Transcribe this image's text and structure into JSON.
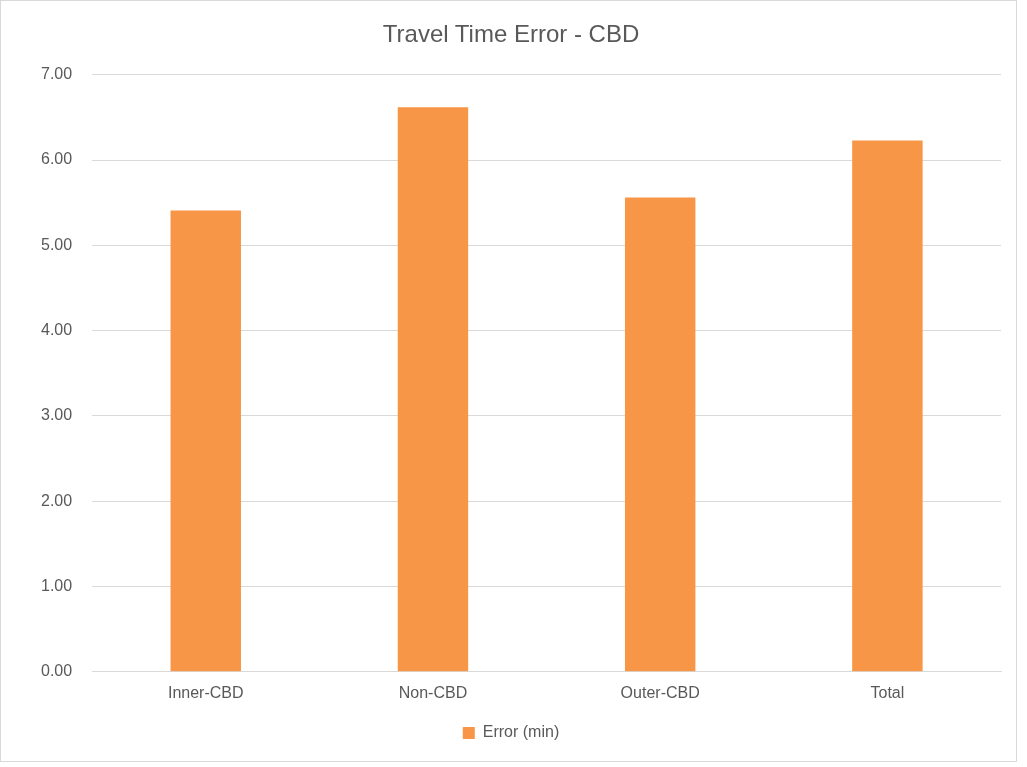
{
  "chart_data": {
    "type": "bar",
    "title": "Travel Time Error - CBD",
    "categories": [
      "Inner-CBD",
      "Non-CBD",
      "Outer-CBD",
      "Total"
    ],
    "series": [
      {
        "name": "Error (min)",
        "color": "#f79646",
        "values": [
          5.41,
          6.62,
          5.56,
          6.23
        ]
      }
    ],
    "ylim": [
      0,
      7
    ],
    "yticks": [
      {
        "value": 0,
        "label": "0.00"
      },
      {
        "value": 1,
        "label": "1.00"
      },
      {
        "value": 2,
        "label": "2.00"
      },
      {
        "value": 3,
        "label": "3.00"
      },
      {
        "value": 4,
        "label": "4.00"
      },
      {
        "value": 5,
        "label": "5.00"
      },
      {
        "value": 6,
        "label": "6.00"
      },
      {
        "value": 7,
        "label": "7.00"
      }
    ],
    "grid": "y",
    "legend": "bottom"
  }
}
